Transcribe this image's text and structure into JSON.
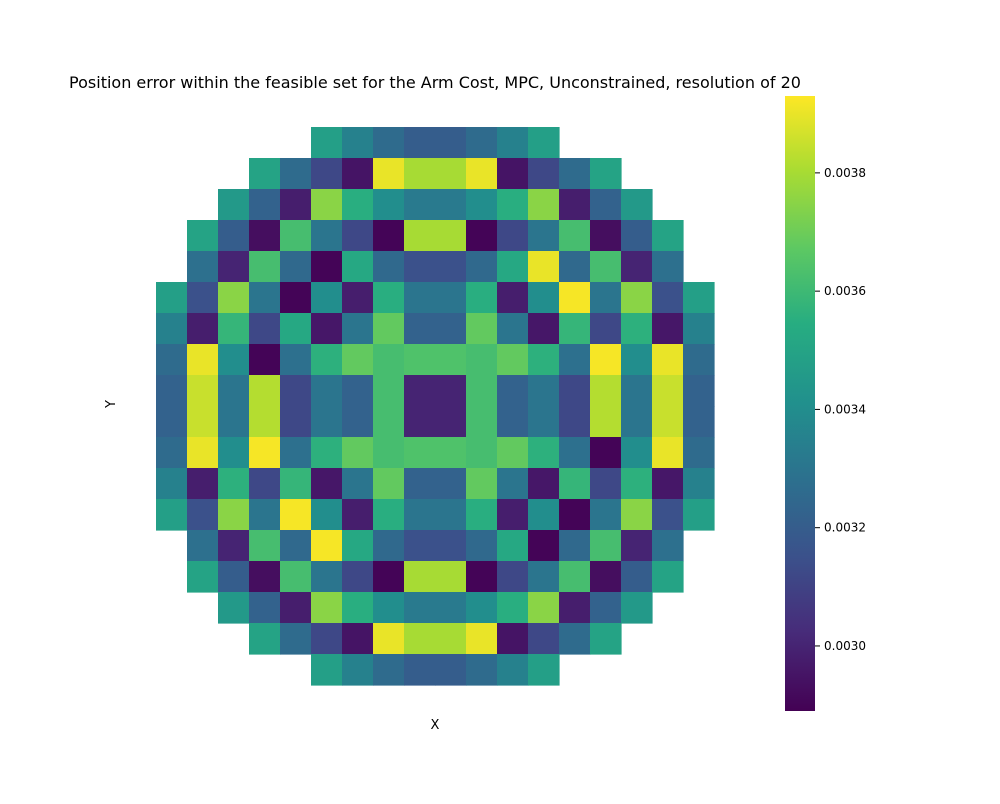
{
  "chart_data": {
    "type": "heatmap",
    "title": "Position error within the feasible set for the Arm Cost, MPC, Unconstrained, resolution of 20",
    "xlabel": "X",
    "ylabel": "Y",
    "grid": false,
    "colormap": "viridis",
    "colorbar": {
      "min": 0.00289,
      "max": 0.00393,
      "ticks": [
        0.003,
        0.0032,
        0.0034,
        0.0036,
        0.0038
      ],
      "tick_labels": [
        "0.0030",
        "0.0032",
        "0.0034",
        "0.0036",
        "0.0038"
      ]
    },
    "rows": [
      [
        null,
        null,
        null,
        null,
        null,
        0.00348,
        0.00335,
        0.00326,
        0.0032,
        0.0032,
        0.00326,
        0.00335,
        0.00348,
        null,
        null,
        null,
        null,
        null
      ],
      [
        null,
        null,
        null,
        0.0035,
        0.00326,
        0.00312,
        0.00295,
        0.0039,
        0.0038,
        0.0038,
        0.0039,
        0.00295,
        0.00312,
        0.00326,
        0.0035,
        null,
        null,
        null
      ],
      [
        null,
        null,
        0.00345,
        0.00322,
        0.00298,
        0.00375,
        0.00355,
        0.0034,
        0.00332,
        0.00332,
        0.0034,
        0.00355,
        0.00375,
        0.00298,
        0.00322,
        0.00345,
        null,
        null
      ],
      [
        null,
        0.0035,
        0.0032,
        0.00293,
        0.00362,
        0.0033,
        0.00312,
        0.0029,
        0.0038,
        0.0038,
        0.0029,
        0.00312,
        0.0033,
        0.00362,
        0.00293,
        0.0032,
        0.0035,
        null
      ],
      [
        null,
        0.00328,
        0.003,
        0.00362,
        0.00325,
        0.0029,
        0.00352,
        0.00325,
        0.00315,
        0.00315,
        0.00325,
        0.00352,
        0.0039,
        0.00325,
        0.00362,
        0.003,
        0.00328,
        null
      ],
      [
        0.00348,
        0.00315,
        0.00375,
        0.0033,
        0.0029,
        0.0034,
        0.00298,
        0.00355,
        0.0033,
        0.0033,
        0.00355,
        0.00298,
        0.0034,
        0.00392,
        0.0033,
        0.00375,
        0.00315,
        0.00348
      ],
      [
        0.00335,
        0.00298,
        0.00358,
        0.00312,
        0.00352,
        0.00296,
        0.0033,
        0.00368,
        0.00322,
        0.00322,
        0.00368,
        0.0033,
        0.00296,
        0.00358,
        0.00312,
        0.00356,
        0.00296,
        0.00335
      ],
      [
        0.00326,
        0.0039,
        0.0034,
        0.0029,
        0.00328,
        0.00356,
        0.00368,
        0.00362,
        0.00364,
        0.00364,
        0.00362,
        0.00368,
        0.00356,
        0.00328,
        0.00392,
        0.0034,
        0.0039,
        0.00326
      ],
      [
        0.00322,
        0.00385,
        0.0033,
        0.00382,
        0.00312,
        0.0033,
        0.00322,
        0.00362,
        0.003,
        0.003,
        0.00362,
        0.00322,
        0.0033,
        0.00312,
        0.00382,
        0.0033,
        0.00385,
        0.00322
      ],
      [
        0.00322,
        0.00385,
        0.0033,
        0.00382,
        0.00312,
        0.0033,
        0.00322,
        0.00362,
        0.003,
        0.003,
        0.00362,
        0.00322,
        0.0033,
        0.00312,
        0.00382,
        0.0033,
        0.00385,
        0.00322
      ],
      [
        0.00326,
        0.0039,
        0.0034,
        0.00392,
        0.00328,
        0.00356,
        0.00368,
        0.00362,
        0.00364,
        0.00364,
        0.00362,
        0.00368,
        0.00356,
        0.00328,
        0.0029,
        0.0034,
        0.0039,
        0.00326
      ],
      [
        0.00335,
        0.00298,
        0.00356,
        0.00312,
        0.00358,
        0.00296,
        0.0033,
        0.00368,
        0.00322,
        0.00322,
        0.00368,
        0.0033,
        0.00296,
        0.00358,
        0.00312,
        0.00356,
        0.00296,
        0.00335
      ],
      [
        0.00348,
        0.00315,
        0.00375,
        0.0033,
        0.00392,
        0.0034,
        0.00298,
        0.00355,
        0.0033,
        0.0033,
        0.00355,
        0.00298,
        0.0034,
        0.0029,
        0.0033,
        0.00375,
        0.00315,
        0.00348
      ],
      [
        null,
        0.00328,
        0.003,
        0.00362,
        0.00325,
        0.00392,
        0.00352,
        0.00325,
        0.00315,
        0.00315,
        0.00325,
        0.00352,
        0.0029,
        0.00325,
        0.00362,
        0.003,
        0.00328,
        null
      ],
      [
        null,
        0.0035,
        0.0032,
        0.00293,
        0.00362,
        0.0033,
        0.00312,
        0.0029,
        0.0038,
        0.0038,
        0.0029,
        0.00312,
        0.0033,
        0.00362,
        0.00293,
        0.0032,
        0.0035,
        null
      ],
      [
        null,
        null,
        0.00345,
        0.00322,
        0.00298,
        0.00375,
        0.00355,
        0.0034,
        0.00332,
        0.00332,
        0.0034,
        0.00355,
        0.00375,
        0.00298,
        0.00322,
        0.00345,
        null,
        null
      ],
      [
        null,
        null,
        null,
        0.0035,
        0.00326,
        0.00312,
        0.00295,
        0.0039,
        0.0038,
        0.0038,
        0.0039,
        0.00295,
        0.00312,
        0.00326,
        0.0035,
        null,
        null,
        null
      ],
      [
        null,
        null,
        null,
        null,
        null,
        0.00348,
        0.00335,
        0.00326,
        0.0032,
        0.0032,
        0.00326,
        0.00335,
        0.00348,
        null,
        null,
        null,
        null,
        null
      ]
    ]
  }
}
